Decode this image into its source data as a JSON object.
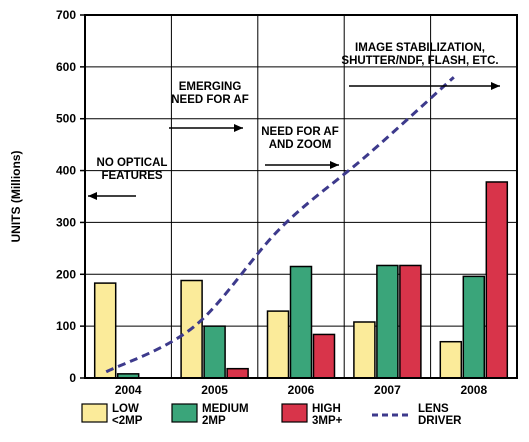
{
  "chart_data": {
    "type": "bar",
    "categories": [
      "2004",
      "2005",
      "2006",
      "2007",
      "2008"
    ],
    "ylabel": "UNITS (Millions)",
    "ylim": [
      0,
      700
    ],
    "yticks": [
      0,
      100,
      200,
      300,
      400,
      500,
      600,
      700
    ],
    "grid": true,
    "series": [
      {
        "name": "LOW <2MP",
        "label_lines": [
          "LOW",
          "<2MP"
        ],
        "color": "#fbeb9a",
        "values": [
          183,
          188,
          129,
          108,
          70
        ]
      },
      {
        "name": "MEDIUM 2MP",
        "label_lines": [
          "MEDIUM",
          "2MP"
        ],
        "color": "#3aa57a",
        "values": [
          8,
          100,
          215,
          217,
          196
        ]
      },
      {
        "name": "HIGH 3MP+",
        "label_lines": [
          "HIGH",
          "3MP+"
        ],
        "color": "#d8344a",
        "values": [
          0,
          18,
          84,
          217,
          378
        ]
      }
    ],
    "line_series": {
      "name": "LENS DRIVER",
      "label_lines": [
        "LENS",
        "DRIVER"
      ],
      "color": "#3d3a8c",
      "style": "dashed",
      "values": [
        12,
        100,
        290,
        430,
        580
      ]
    },
    "annotations": [
      {
        "lines": [
          "NO OPTICAL",
          "FEATURES"
        ],
        "arrow": "left"
      },
      {
        "lines": [
          "EMERGING",
          "NEED FOR AF"
        ],
        "arrow": "right"
      },
      {
        "lines": [
          "NEED FOR AF",
          "AND ZOOM"
        ],
        "arrow": "right"
      },
      {
        "lines": [
          "IMAGE STABILIZATION,",
          "SHUTTER/NDF, FLASH, ETC."
        ],
        "arrow": "right"
      }
    ],
    "legend_position": "bottom"
  }
}
